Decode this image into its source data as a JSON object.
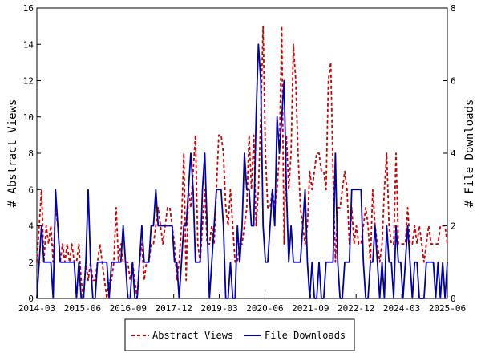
{
  "chart_data": {
    "type": "line",
    "x_tick_labels": [
      "2014-03",
      "2015-06",
      "2016-09",
      "2017-12",
      "2019-03",
      "2020-06",
      "2021-09",
      "2022-12",
      "2024-03",
      "2025-06"
    ],
    "y_left": {
      "label": "# Abstract Views",
      "ylim": [
        0,
        16
      ],
      "ticks": [
        "0",
        "2",
        "4",
        "6",
        "8",
        "10",
        "12",
        "14",
        "16"
      ]
    },
    "y_right": {
      "label": "# File Downloads",
      "ylim": [
        0,
        8
      ],
      "ticks": [
        "0",
        "2",
        "4",
        "6",
        "8"
      ]
    },
    "legend_position": "bottom-center",
    "grid": false,
    "series": [
      {
        "name": "Abstract Views",
        "axis": "left",
        "color": "#cc0000",
        "style": "dashed",
        "values": [
          2,
          4,
          6,
          2,
          4,
          3,
          4,
          2,
          5,
          4,
          2,
          3,
          2,
          3,
          2,
          3,
          2,
          2,
          3,
          1,
          0,
          2,
          1,
          2,
          1,
          1,
          2,
          3,
          2,
          1,
          0,
          1,
          1,
          2,
          5,
          2,
          3,
          2,
          2,
          2,
          1,
          2,
          1,
          0,
          2,
          3,
          1,
          2,
          2,
          3,
          3,
          4,
          5,
          4,
          3,
          4,
          5,
          5,
          4,
          3,
          1,
          2,
          4,
          8,
          1,
          6,
          5,
          7,
          9,
          3,
          2,
          4,
          6,
          3,
          3,
          4,
          3,
          6,
          9,
          9,
          8,
          5,
          4,
          6,
          4,
          2,
          2,
          3,
          3,
          4,
          5,
          9,
          6,
          9,
          4,
          6,
          10,
          15,
          8,
          5,
          5,
          6,
          5,
          6,
          8,
          15,
          3,
          9,
          6,
          8,
          14,
          12,
          8,
          5,
          4,
          3,
          4,
          7,
          6,
          7,
          8,
          8,
          7,
          7,
          6,
          12,
          13,
          7,
          2,
          5,
          5,
          6,
          7,
          6,
          3,
          5,
          3,
          4,
          3,
          3,
          4,
          5,
          4,
          2,
          6,
          4,
          3,
          2,
          3,
          6,
          8,
          4,
          3,
          3,
          8,
          3,
          3,
          3,
          3,
          5,
          3,
          3,
          4,
          3,
          4,
          3,
          2,
          3,
          4,
          3,
          3,
          3,
          3,
          4,
          4,
          4,
          3
        ]
      },
      {
        "name": "File Downloads",
        "axis": "right",
        "color": "#0000aa",
        "style": "solid",
        "values": [
          0,
          1,
          2,
          1,
          1,
          1,
          1,
          0,
          3,
          2,
          1,
          1,
          1,
          1,
          1,
          1,
          1,
          0,
          1,
          0,
          0,
          1,
          3,
          1,
          0,
          0,
          1,
          1,
          1,
          1,
          1,
          0,
          1,
          1,
          1,
          1,
          1,
          2,
          1,
          0,
          0,
          1,
          0,
          0,
          1,
          2,
          1,
          1,
          1,
          2,
          2,
          3,
          2,
          2,
          2,
          2,
          2,
          2,
          2,
          1,
          1,
          0,
          1,
          2,
          2,
          3,
          4,
          3,
          1,
          1,
          1,
          3,
          4,
          2,
          0,
          1,
          2,
          3,
          3,
          3,
          2,
          0,
          0,
          1,
          0,
          0,
          2,
          1,
          2,
          4,
          3,
          3,
          2,
          2,
          5,
          7,
          6,
          2,
          1,
          1,
          2,
          3,
          2,
          5,
          4,
          5,
          6,
          3,
          1,
          2,
          1,
          1,
          1,
          1,
          2,
          3,
          1,
          0,
          1,
          0,
          0,
          1,
          0,
          0,
          1,
          1,
          1,
          1,
          4,
          1,
          0,
          0,
          1,
          1,
          1,
          3,
          3,
          3,
          3,
          3,
          1,
          0,
          0,
          1,
          1,
          2,
          1,
          0,
          1,
          0,
          2,
          1,
          1,
          0,
          2,
          1,
          1,
          0,
          1,
          2,
          1,
          0,
          1,
          1,
          0,
          0,
          0,
          1,
          1,
          1,
          1,
          0,
          1,
          0,
          1,
          0,
          1
        ]
      }
    ]
  }
}
